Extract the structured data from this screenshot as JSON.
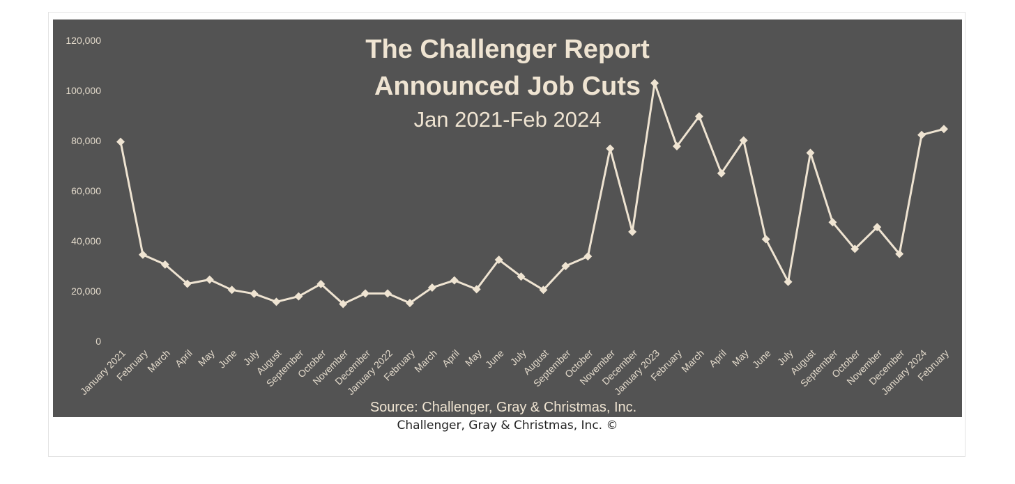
{
  "colors": {
    "background": "#ffffff",
    "panel": "#535353",
    "series": "#efe4d2",
    "tick_text": "#e3dacb",
    "caption": "#222222"
  },
  "caption": "Challenger, Gray & Christmas, Inc. ©",
  "chart_data": {
    "type": "line",
    "title": "The Challenger Report",
    "subtitle": "Announced Job Cuts",
    "date_range": "Jan 2021-Feb 2024",
    "source": "Source: Challenger, Gray & Christmas, Inc.",
    "xlabel": "",
    "ylabel": "",
    "ylim": [
      0,
      120000
    ],
    "yticks": [
      0,
      20000,
      40000,
      60000,
      80000,
      100000,
      120000
    ],
    "ytick_labels": [
      "0",
      "20,000",
      "40,000",
      "60,000",
      "80,000",
      "100,000",
      "120,000"
    ],
    "grid": false,
    "legend": "none",
    "marker": "diamond",
    "categories": [
      "January 2021",
      "February",
      "March",
      "April",
      "May",
      "June",
      "July",
      "August",
      "September",
      "October",
      "November",
      "December",
      "January 2022",
      "February",
      "March",
      "April",
      "May",
      "June",
      "July",
      "August",
      "September",
      "October",
      "November",
      "December",
      "January 2023",
      "February",
      "March",
      "April",
      "May",
      "June",
      "July",
      "August",
      "September",
      "October",
      "November",
      "December",
      "January 2024",
      "February"
    ],
    "values": [
      79552,
      34531,
      30603,
      22913,
      24586,
      20476,
      18942,
      15723,
      17895,
      22822,
      14875,
      19052,
      19064,
      15245,
      21387,
      24286,
      20712,
      32517,
      25810,
      20485,
      29989,
      33843,
      76835,
      43651,
      102943,
      77770,
      89703,
      66995,
      80089,
      40709,
      23697,
      75151,
      47457,
      36836,
      45510,
      34817,
      82307,
      84638
    ]
  }
}
